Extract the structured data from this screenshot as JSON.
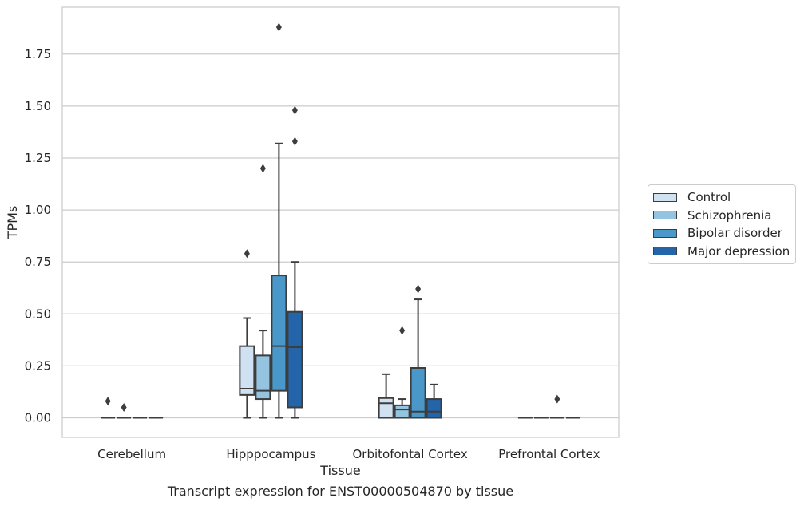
{
  "caption": "Transcript expression for ENST00000504870 by tissue",
  "chart_data": {
    "type": "box",
    "title": "",
    "xlabel": "Tissue",
    "ylabel": "TPMs",
    "ylim": [
      -0.09,
      1.96
    ],
    "yticks": [
      0.0,
      0.25,
      0.5,
      0.75,
      1.0,
      1.25,
      1.5,
      1.75
    ],
    "ytick_labels": [
      "0.00",
      "0.25",
      "0.50",
      "0.75",
      "1.00",
      "1.25",
      "1.50",
      "1.75"
    ],
    "grid": true,
    "legend_position": "right",
    "categories": [
      "Cerebellum",
      "Hipppocampus",
      "Orbitofontal Cortex",
      "Prefrontal Cortex"
    ],
    "series": [
      {
        "name": "Control",
        "color": "#d0e1f2",
        "boxes": [
          {
            "q1": 0.0,
            "median": 0.0,
            "q3": 0.0,
            "whislo": 0.0,
            "whishi": 0.0,
            "fliers": [
              0.08
            ]
          },
          {
            "q1": 0.11,
            "median": 0.14,
            "q3": 0.345,
            "whislo": 0.0,
            "whishi": 0.48,
            "fliers": [
              0.79
            ]
          },
          {
            "q1": 0.0,
            "median": 0.07,
            "q3": 0.095,
            "whislo": 0.0,
            "whishi": 0.21,
            "fliers": []
          },
          {
            "q1": 0.0,
            "median": 0.0,
            "q3": 0.0,
            "whislo": 0.0,
            "whishi": 0.0,
            "fliers": []
          }
        ]
      },
      {
        "name": "Schizophrenia",
        "color": "#94c4df",
        "boxes": [
          {
            "q1": 0.0,
            "median": 0.0,
            "q3": 0.0,
            "whislo": 0.0,
            "whishi": 0.0,
            "fliers": [
              0.05
            ]
          },
          {
            "q1": 0.09,
            "median": 0.13,
            "q3": 0.3,
            "whislo": 0.0,
            "whishi": 0.42,
            "fliers": [
              1.2
            ]
          },
          {
            "q1": 0.0,
            "median": 0.04,
            "q3": 0.06,
            "whislo": 0.0,
            "whishi": 0.09,
            "fliers": [
              0.42
            ]
          },
          {
            "q1": 0.0,
            "median": 0.0,
            "q3": 0.0,
            "whislo": 0.0,
            "whishi": 0.0,
            "fliers": []
          }
        ]
      },
      {
        "name": "Bipolar disorder",
        "color": "#4a98c9",
        "boxes": [
          {
            "q1": 0.0,
            "median": 0.0,
            "q3": 0.0,
            "whislo": 0.0,
            "whishi": 0.0,
            "fliers": []
          },
          {
            "q1": 0.13,
            "median": 0.345,
            "q3": 0.685,
            "whislo": 0.0,
            "whishi": 1.32,
            "fliers": [
              1.88
            ]
          },
          {
            "q1": 0.0,
            "median": 0.03,
            "q3": 0.24,
            "whislo": 0.0,
            "whishi": 0.57,
            "fliers": [
              0.62
            ]
          },
          {
            "q1": 0.0,
            "median": 0.0,
            "q3": 0.0,
            "whislo": 0.0,
            "whishi": 0.0,
            "fliers": [
              0.09
            ]
          }
        ]
      },
      {
        "name": "Major depression",
        "color": "#2464a8",
        "boxes": [
          {
            "q1": 0.0,
            "median": 0.0,
            "q3": 0.0,
            "whislo": 0.0,
            "whishi": 0.0,
            "fliers": []
          },
          {
            "q1": 0.05,
            "median": 0.34,
            "q3": 0.51,
            "whislo": 0.0,
            "whishi": 0.75,
            "fliers": [
              1.33,
              1.48
            ]
          },
          {
            "q1": 0.0,
            "median": 0.03,
            "q3": 0.09,
            "whislo": 0.0,
            "whishi": 0.16,
            "fliers": []
          },
          {
            "q1": 0.0,
            "median": 0.0,
            "q3": 0.0,
            "whislo": 0.0,
            "whishi": 0.0,
            "fliers": []
          }
        ]
      }
    ]
  }
}
